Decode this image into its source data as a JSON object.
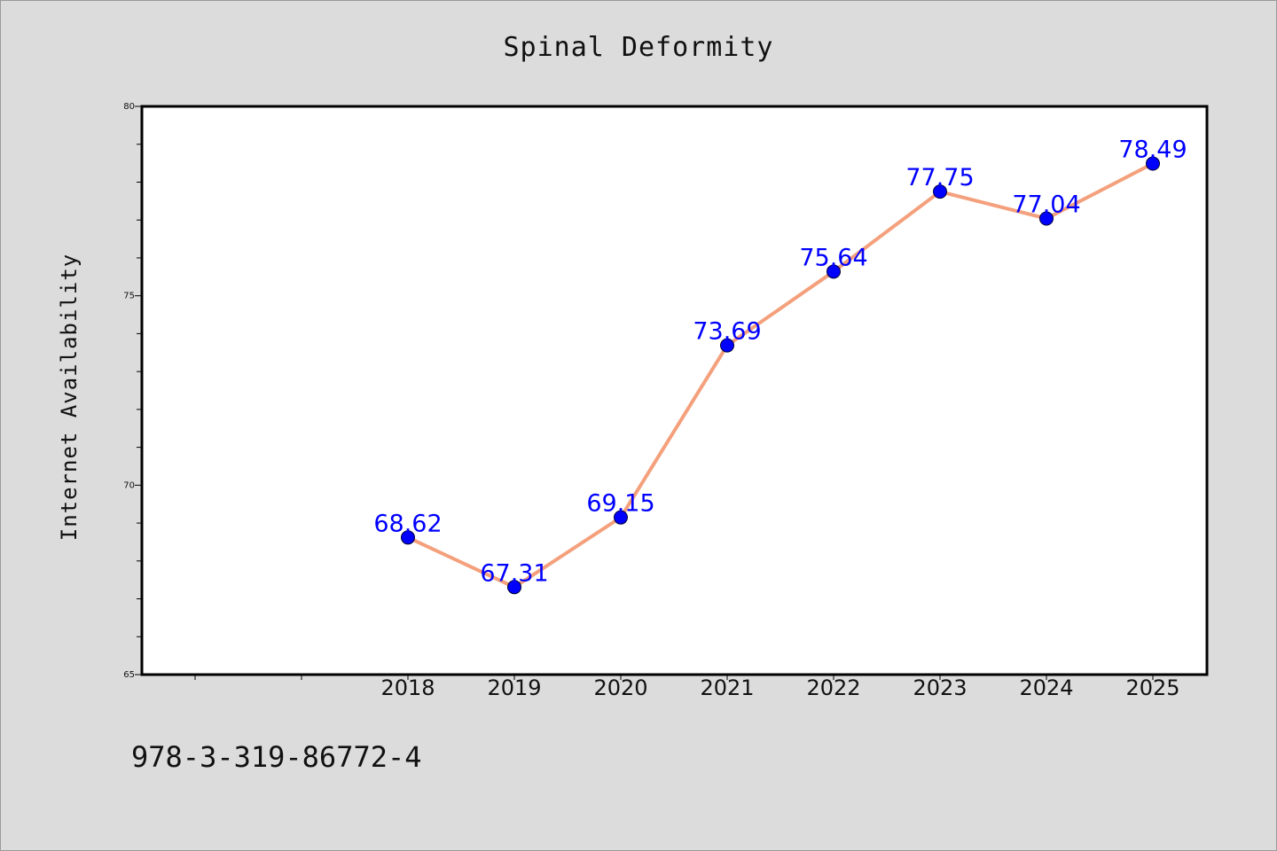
{
  "chart_data": {
    "type": "line",
    "title": "Spinal Deformity",
    "xlabel": "",
    "ylabel": "Internet Availability",
    "categories": [
      "2018",
      "2019",
      "2020",
      "2021",
      "2022",
      "2023",
      "2024",
      "2025"
    ],
    "series": [
      {
        "values": [
          68.62,
          67.31,
          69.15,
          73.69,
          75.64,
          77.75,
          77.04,
          78.49
        ],
        "data_labels": [
          "68.62",
          "67.31",
          "69.15",
          "73.69",
          "75.64",
          "77.75",
          "77.04",
          "78.49"
        ]
      }
    ],
    "ylim": [
      65,
      80
    ],
    "yticks": [
      "65",
      "70",
      "75",
      "80"
    ],
    "grid": false,
    "legend": "none",
    "colors": {
      "line": "#f4a07c",
      "marker": "#0000ff",
      "data_label": "#0000ff",
      "background": "#dcdcdc",
      "plot_background": "#ffffff"
    }
  },
  "annotation": {
    "isbn": "978-3-319-86772-4"
  }
}
